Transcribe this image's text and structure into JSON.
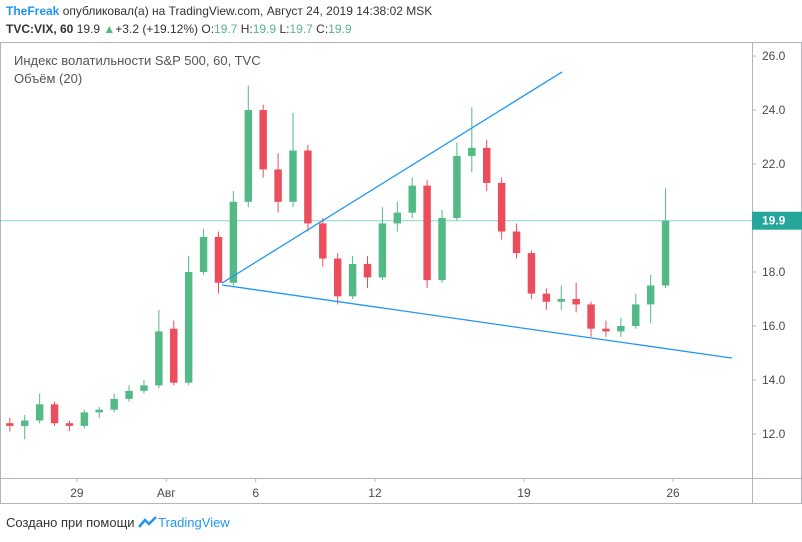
{
  "header": {
    "author": "TheFreak",
    "published": "опубликовал(а) на TradingView.com, Август 24, 2019 14:38:02 MSK",
    "symbol": "TVC:VIX, 60",
    "price": 19.9,
    "arrow": "▲",
    "change": "+3.2 (+19.12%)",
    "ohlc": [
      {
        "label": "O:",
        "value": 19.7
      },
      {
        "label": "H:",
        "value": 19.9
      },
      {
        "label": "L:",
        "value": 19.7
      },
      {
        "label": "C:",
        "value": 19.9
      }
    ]
  },
  "chart_data": {
    "type": "candlestick",
    "legend": [
      "Индекс волатильности S&P 500, 60, TVC",
      "Объём (20)"
    ],
    "x": [
      -2.25,
      -1.75,
      -1.25,
      -0.75,
      -0.25,
      0.25,
      0.75,
      1.25,
      1.75,
      2.25,
      2.75,
      3.25,
      3.75,
      4.25,
      4.75,
      5.25,
      5.75,
      6.25,
      6.75,
      7.25,
      7.75,
      8.25,
      8.75,
      9.25,
      9.75,
      10.25,
      10.75,
      11.25,
      11.75,
      12.25,
      12.75,
      13.25,
      13.75,
      14.25,
      14.75,
      15.25,
      15.75,
      16.25,
      16.75,
      17.25,
      17.75,
      18.25,
      18.75,
      19.25,
      19.75
    ],
    "open": [
      12.4,
      12.3,
      12.5,
      13.1,
      12.4,
      12.3,
      12.8,
      12.9,
      13.3,
      13.6,
      13.8,
      15.9,
      13.9,
      18.0,
      19.3,
      17.6,
      20.6,
      24.0,
      21.8,
      20.6,
      22.5,
      19.8,
      18.5,
      17.1,
      18.3,
      17.8,
      19.8,
      20.2,
      21.2,
      17.7,
      20.0,
      22.3,
      22.6,
      21.3,
      19.5,
      18.7,
      17.2,
      16.9,
      17.0,
      16.8,
      15.9,
      15.8,
      16.0,
      16.8,
      17.5
    ],
    "high": [
      12.6,
      12.7,
      13.5,
      13.2,
      12.5,
      12.9,
      13.0,
      13.5,
      13.8,
      14.0,
      16.6,
      16.2,
      18.6,
      19.6,
      19.5,
      21.0,
      24.9,
      24.2,
      22.4,
      23.9,
      22.7,
      20.0,
      18.7,
      18.6,
      18.6,
      20.4,
      20.6,
      21.5,
      21.4,
      20.3,
      22.8,
      24.1,
      22.9,
      21.5,
      19.8,
      18.8,
      17.4,
      17.5,
      17.6,
      16.9,
      16.2,
      16.3,
      17.2,
      17.9,
      21.1
    ],
    "low": [
      12.1,
      11.8,
      12.4,
      12.3,
      12.1,
      12.2,
      12.6,
      12.8,
      13.2,
      13.5,
      13.7,
      13.8,
      13.8,
      17.9,
      17.2,
      17.5,
      20.4,
      21.5,
      20.2,
      20.4,
      19.5,
      18.2,
      16.8,
      17.0,
      17.4,
      17.7,
      19.5,
      20.0,
      17.4,
      17.6,
      19.9,
      21.7,
      21.0,
      19.2,
      18.5,
      17.0,
      16.6,
      16.6,
      16.5,
      15.6,
      15.6,
      15.6,
      15.9,
      16.1,
      17.4
    ],
    "close": [
      12.3,
      12.5,
      13.1,
      12.4,
      12.3,
      12.8,
      12.9,
      13.3,
      13.6,
      13.8,
      15.8,
      13.9,
      18.0,
      19.3,
      17.6,
      20.6,
      24.0,
      21.8,
      20.6,
      22.5,
      19.8,
      18.5,
      17.1,
      18.3,
      17.8,
      19.8,
      20.2,
      21.2,
      17.7,
      20.0,
      22.3,
      22.6,
      21.3,
      19.5,
      18.7,
      17.2,
      16.9,
      17.0,
      16.8,
      15.9,
      15.8,
      16.0,
      16.8,
      17.5,
      19.9
    ],
    "up_color": "#53b987",
    "down_color": "#eb4d5c",
    "trendlines": [
      {
        "x": [
          4.87,
          16.28
        ],
        "y": [
          17.59,
          25.41
        ]
      },
      {
        "x": [
          4.87,
          21.98
        ],
        "y": [
          17.52,
          14.81
        ]
      }
    ],
    "trendline_color": "#2196f3",
    "last_price": 19.9,
    "last_price_color": "#26a69a",
    "xlim": [
      -2.58,
      22.65
    ],
    "ylim": [
      10.37,
      26.52
    ],
    "xticks": [
      {
        "value": 0,
        "label": "29"
      },
      {
        "value": 3,
        "label": "Авг"
      },
      {
        "value": 6,
        "label": "6"
      },
      {
        "value": 10,
        "label": "12"
      },
      {
        "value": 15,
        "label": "19"
      },
      {
        "value": 20,
        "label": "26"
      }
    ],
    "yticks": [
      {
        "value": 12,
        "label": "12.0"
      },
      {
        "value": 14,
        "label": "14.0"
      },
      {
        "value": 16,
        "label": "16.0"
      },
      {
        "value": 18,
        "label": "18.0"
      },
      {
        "value": 20,
        "label": "20.0"
      },
      {
        "value": 22,
        "label": "22.0"
      },
      {
        "value": 24,
        "label": "24.0"
      },
      {
        "value": 26,
        "label": "26.0"
      }
    ]
  },
  "footer": {
    "text": "Создано при помощи",
    "brand": "TradingView"
  }
}
